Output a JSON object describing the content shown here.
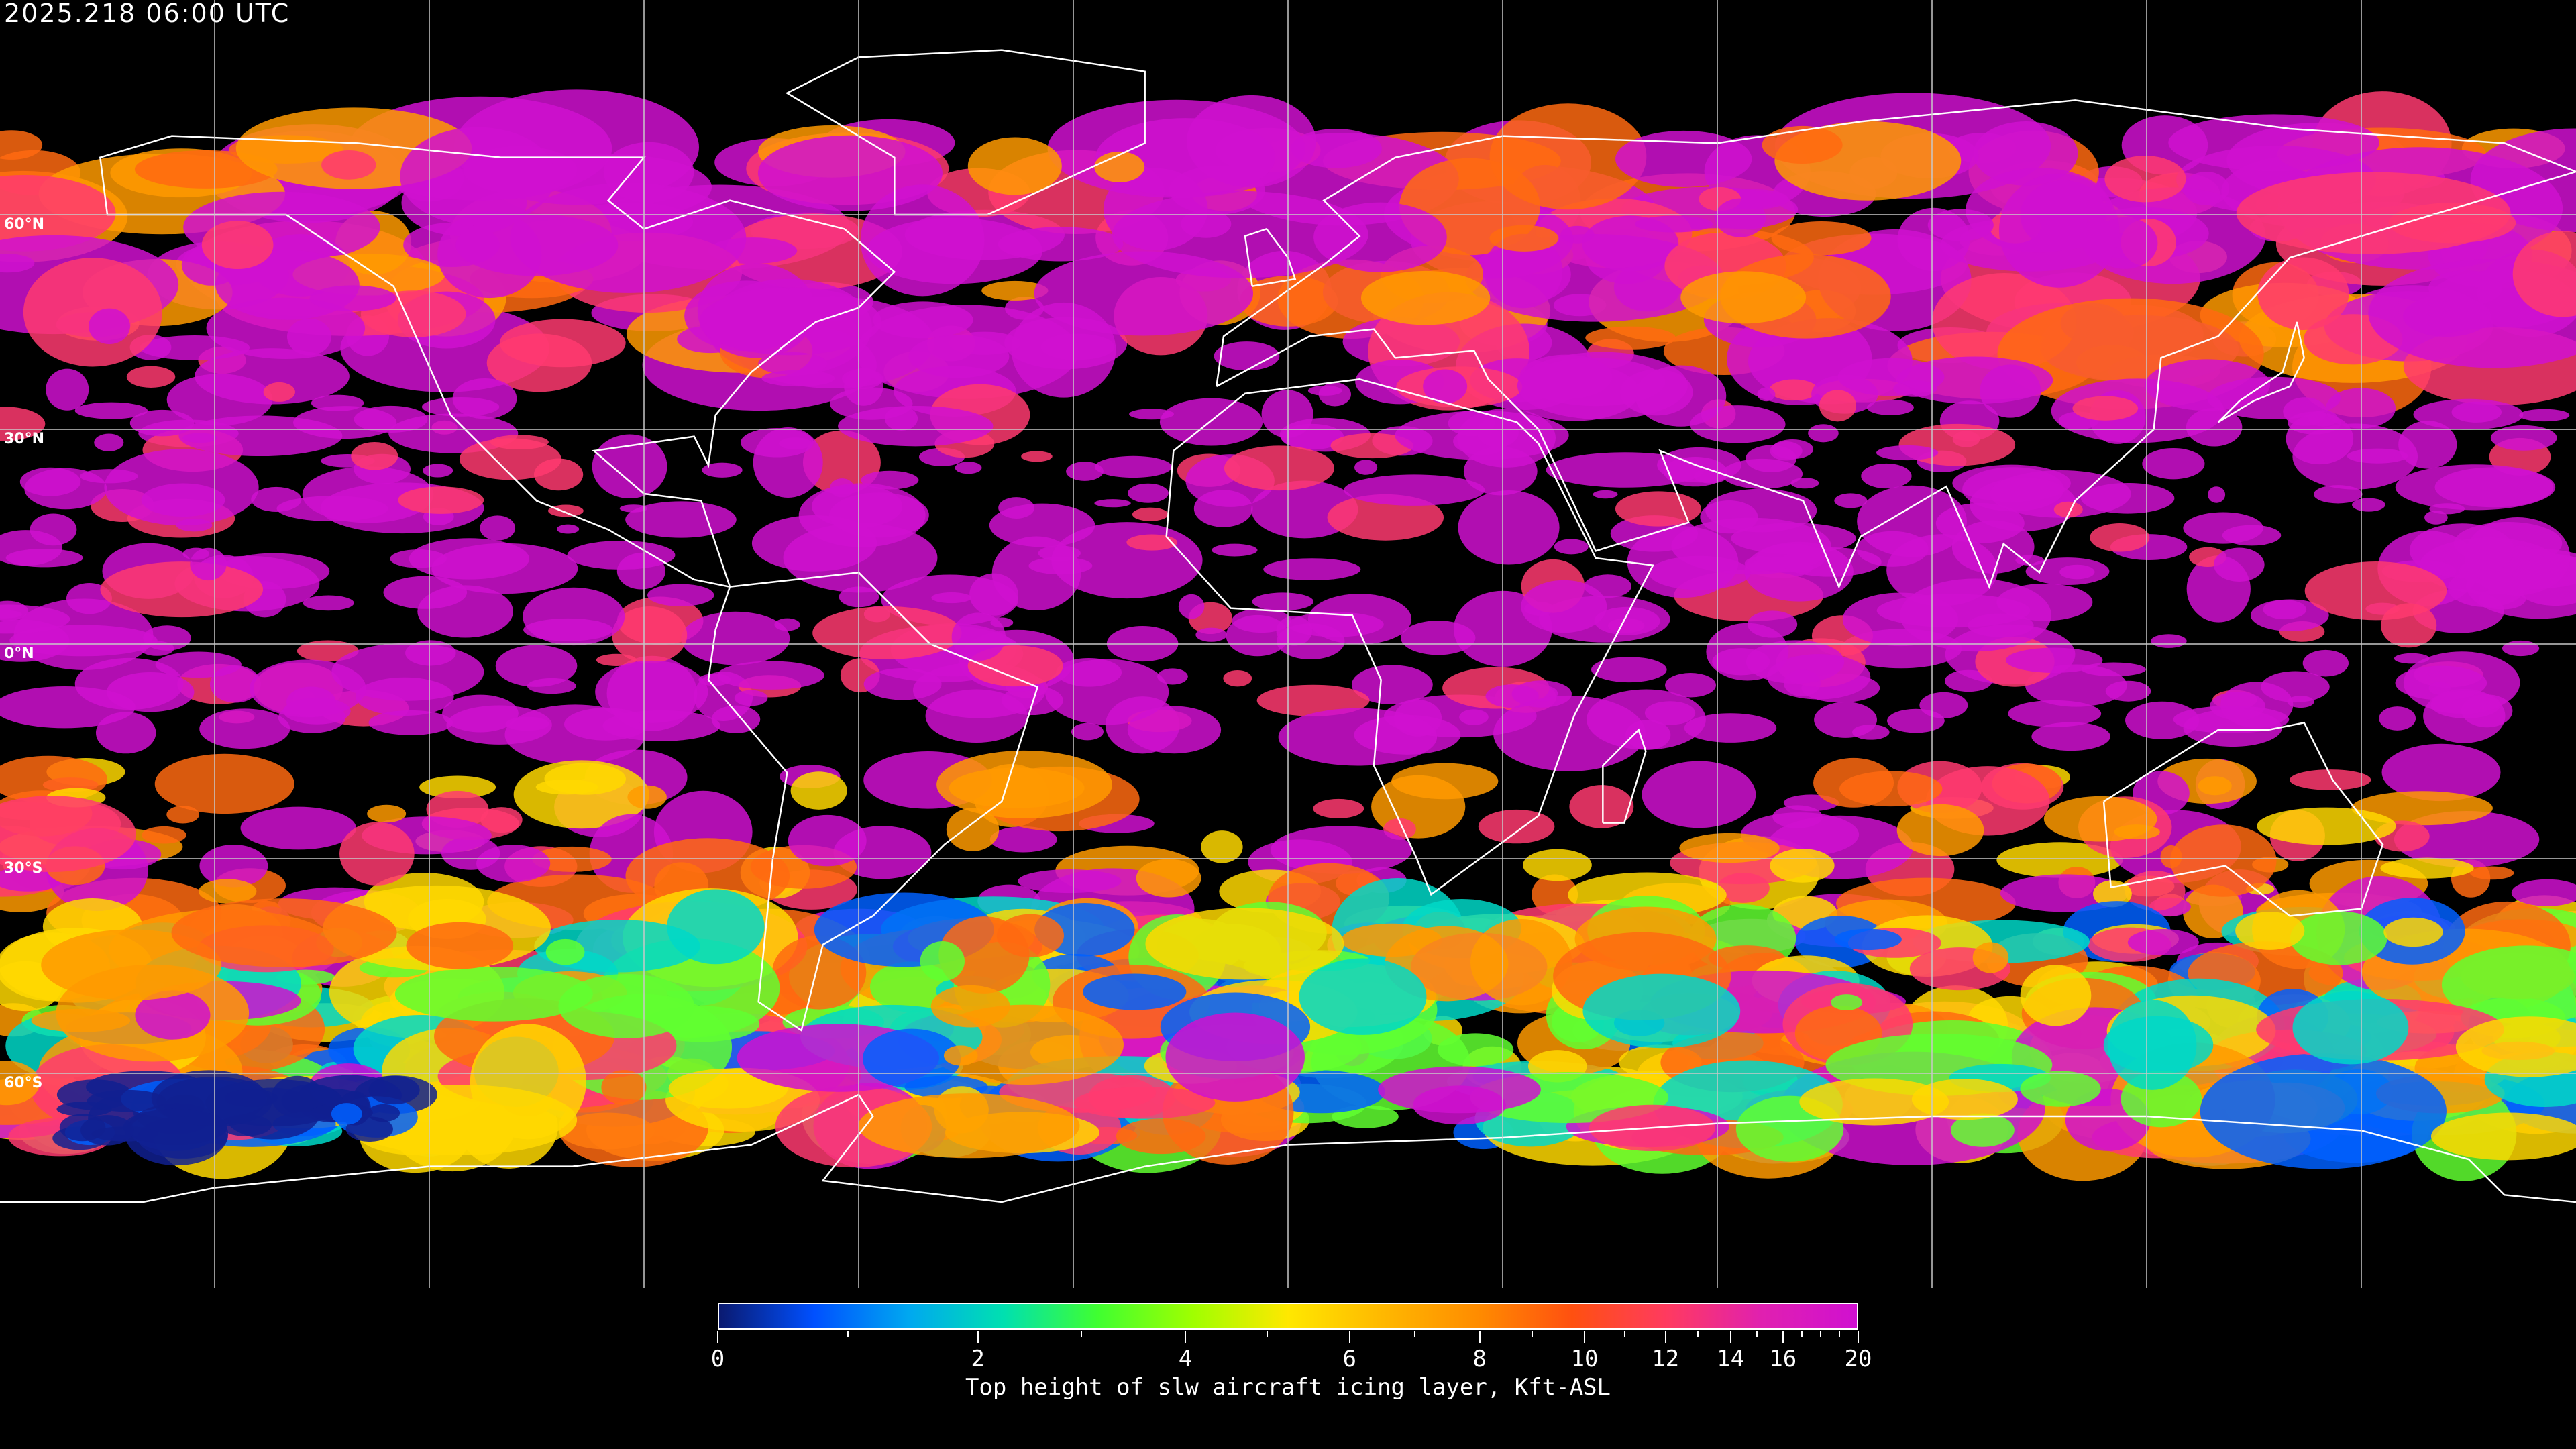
{
  "header": {
    "timestamp": "2025.218 06:00 UTC"
  },
  "map": {
    "projection": "equirectangular",
    "lat_labels": [
      "60°N",
      "30°N",
      "0°N",
      "30°S",
      "60°S"
    ],
    "grid_spacing_deg": 30,
    "background": "#000000",
    "coastline_color": "#ffffff",
    "grid_color": "#c8c8c8"
  },
  "colorbar": {
    "label": "Top height of slw aircraft icing layer, Kft-ASL",
    "min": 0,
    "max": 20,
    "major_ticks": [
      "0",
      "2",
      "4",
      "6",
      "8",
      "10",
      "12",
      "14",
      "16",
      "20"
    ],
    "minor_ticks": [
      1,
      3,
      5,
      7,
      9,
      11,
      13,
      15,
      17,
      18,
      19
    ],
    "colors": [
      "#0a1a70",
      "#0050ff",
      "#00a8f0",
      "#00e0b0",
      "#40ff30",
      "#a0ff00",
      "#ffe800",
      "#ffb800",
      "#ff8c00",
      "#ff5010",
      "#ff3a60",
      "#e020b0",
      "#d010d0"
    ]
  }
}
